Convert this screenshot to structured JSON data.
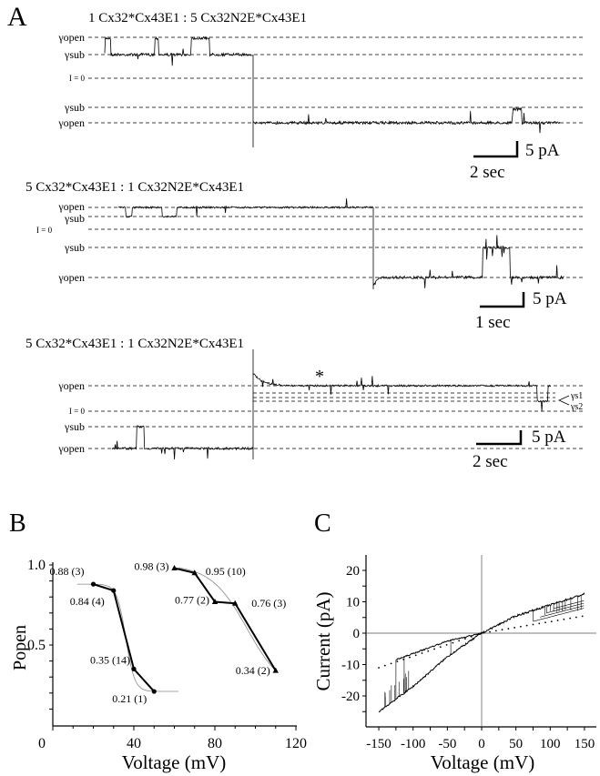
{
  "panel_a": {
    "letter": "A",
    "traces": [
      {
        "title": "1 Cx32*Cx43E1 : 5 Cx32N2E*Cx43E1",
        "levels": [
          "γopen",
          "γsub",
          "I = 0",
          "γsub",
          "γopen"
        ],
        "scale_current": "5 pA",
        "scale_time": "2 sec"
      },
      {
        "title": "5 Cx32*Cx43E1 : 1 Cx32N2E*Cx43E1",
        "levels": [
          "γopen",
          "γsub",
          "I = 0",
          "γsub",
          "γopen"
        ],
        "scale_current": "5 pA",
        "scale_time": "1 sec"
      },
      {
        "title": "5 Cx32*Cx43E1 : 1 Cx32N2E*Cx43E1",
        "levels": [
          "γopen",
          "I = 0",
          "γsub",
          "γopen"
        ],
        "marker": "*",
        "right_levels": [
          "γs1",
          "γs2"
        ],
        "scale_current": "5 pA",
        "scale_time": "2 sec"
      }
    ]
  },
  "chart_data": [
    {
      "panel": "B",
      "type": "line",
      "xlabel": "Voltage (mV)",
      "ylabel": "Popen",
      "xlim": [
        0,
        120
      ],
      "ylim": [
        0,
        1.0
      ],
      "xticks": [
        "0",
        "40",
        "80",
        "120"
      ],
      "yticks": [
        "0.5",
        "1.0"
      ],
      "series": [
        {
          "marker": "circle",
          "x": [
            20,
            30,
            40,
            50
          ],
          "y": [
            0.88,
            0.84,
            0.35,
            0.21
          ],
          "labels": [
            "0.88 (3)",
            "0.84 (4)",
            "0.35 (14)",
            "0.21 (1)"
          ]
        },
        {
          "marker": "triangle",
          "x": [
            60,
            70,
            80,
            90,
            110
          ],
          "y": [
            0.98,
            0.95,
            0.77,
            0.76,
            0.34
          ],
          "labels": [
            "0.98 (3)",
            "0.95 (10)",
            "0.77 (2)",
            "0.76 (3)",
            "0.34 (2)"
          ]
        }
      ]
    },
    {
      "panel": "C",
      "type": "line",
      "xlabel": "Voltage (mV)",
      "ylabel": "Current (pA)",
      "xlim": [
        -175,
        175
      ],
      "ylim": [
        -30,
        25
      ],
      "xticks": [
        "-150",
        "-100",
        "-50",
        "0",
        "50",
        "100",
        "150"
      ],
      "yticks": [
        "20",
        "10",
        "0",
        "-10",
        "-20"
      ],
      "series": [
        {
          "style": "solid-open",
          "x": [
            -150,
            -100,
            -50,
            0,
            50,
            100,
            150
          ],
          "y": [
            -25,
            -17,
            -7.5,
            0,
            5.5,
            9,
            12.5
          ]
        },
        {
          "style": "solid-sub",
          "x": [
            -125,
            -100,
            -50,
            0
          ],
          "y": [
            -8.5,
            -6.5,
            -2.5,
            0
          ]
        },
        {
          "style": "dotted",
          "x": [
            -150,
            0,
            150
          ],
          "y": [
            -11,
            0,
            5.5
          ]
        }
      ]
    }
  ]
}
